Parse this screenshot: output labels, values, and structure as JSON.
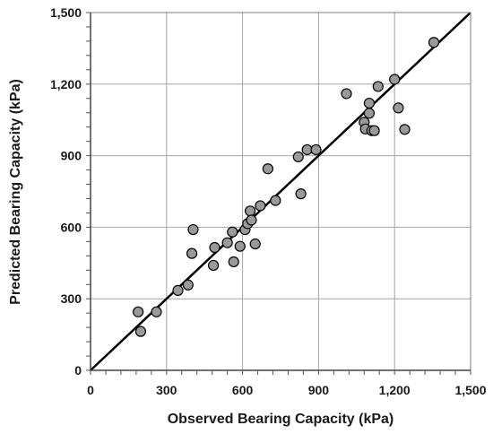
{
  "chart_data": {
    "type": "scatter",
    "xlabel": "Observed Bearing Capacity (kPa)",
    "ylabel": "Predicted Bearing Capacity (kPa)",
    "xlim": [
      0,
      1500
    ],
    "ylim": [
      0,
      1500
    ],
    "xticks": [
      "0",
      "300",
      "600",
      "900",
      "1,200",
      "1,500"
    ],
    "yticks": [
      "0",
      "300",
      "600",
      "900",
      "1,200",
      "1,500"
    ],
    "grid": true,
    "reference_line": {
      "from": [
        0,
        0
      ],
      "to": [
        1500,
        1500
      ]
    },
    "marker_fill": "#999999",
    "marker_stroke": "#000000",
    "points": [
      [
        188,
        245
      ],
      [
        198,
        163
      ],
      [
        260,
        245
      ],
      [
        345,
        335
      ],
      [
        385,
        358
      ],
      [
        400,
        490
      ],
      [
        405,
        590
      ],
      [
        485,
        440
      ],
      [
        490,
        515
      ],
      [
        540,
        535
      ],
      [
        560,
        580
      ],
      [
        565,
        455
      ],
      [
        590,
        520
      ],
      [
        610,
        590
      ],
      [
        620,
        615
      ],
      [
        630,
        668
      ],
      [
        635,
        630
      ],
      [
        650,
        530
      ],
      [
        670,
        690
      ],
      [
        700,
        845
      ],
      [
        730,
        712
      ],
      [
        820,
        895
      ],
      [
        830,
        740
      ],
      [
        855,
        925
      ],
      [
        890,
        925
      ],
      [
        1010,
        1160
      ],
      [
        1080,
        1040
      ],
      [
        1085,
        1012
      ],
      [
        1100,
        1120
      ],
      [
        1100,
        1078
      ],
      [
        1110,
        1005
      ],
      [
        1120,
        1005
      ],
      [
        1135,
        1190
      ],
      [
        1200,
        1220
      ],
      [
        1215,
        1100
      ],
      [
        1240,
        1010
      ],
      [
        1355,
        1375
      ]
    ]
  }
}
